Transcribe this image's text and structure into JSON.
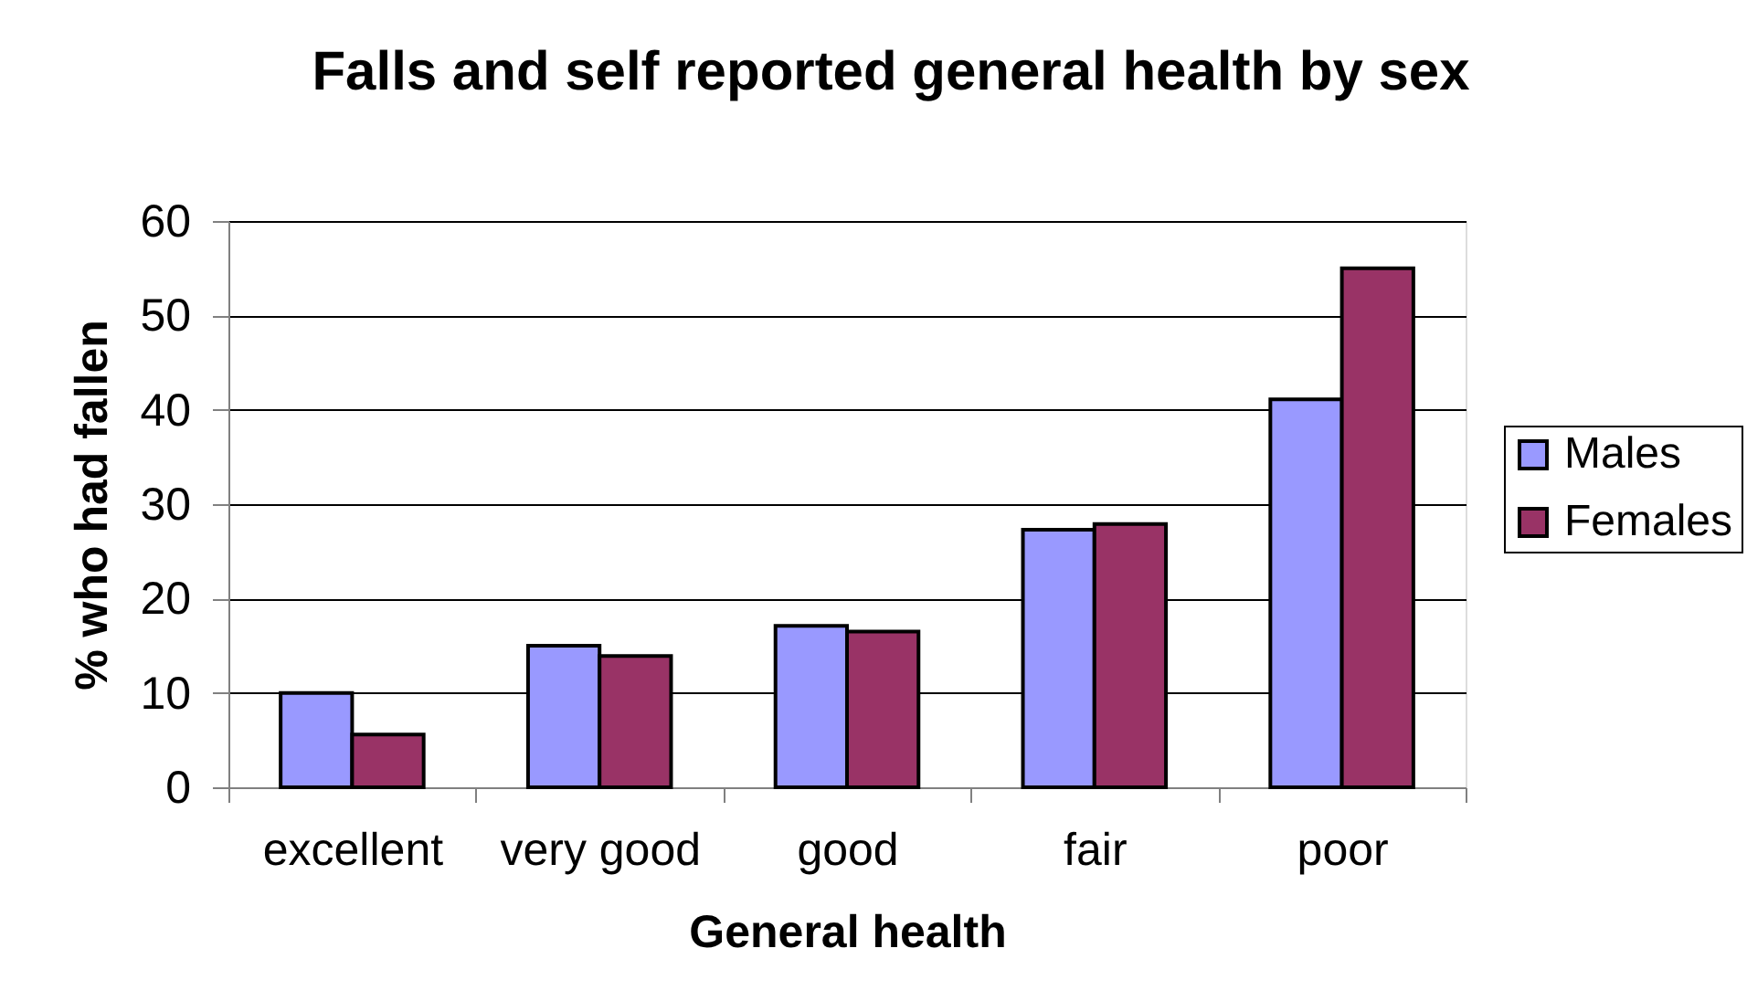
{
  "chart_data": {
    "type": "bar",
    "title": "Falls and self reported general health by sex",
    "xlabel": "General health",
    "ylabel": "% who had fallen",
    "categories": [
      "excellent",
      "very good",
      "good",
      "fair",
      "poor"
    ],
    "series": [
      {
        "name": "Males",
        "color": "#9999ff",
        "values": [
          10,
          15,
          17.1,
          27.3,
          41.1
        ]
      },
      {
        "name": "Females",
        "color": "#993366",
        "values": [
          5.6,
          13.9,
          16.5,
          27.9,
          55
        ]
      }
    ],
    "ylim": [
      0,
      60
    ],
    "yticks": [
      0,
      10,
      20,
      30,
      40,
      50,
      60
    ],
    "grid": "y",
    "legend": "right"
  }
}
